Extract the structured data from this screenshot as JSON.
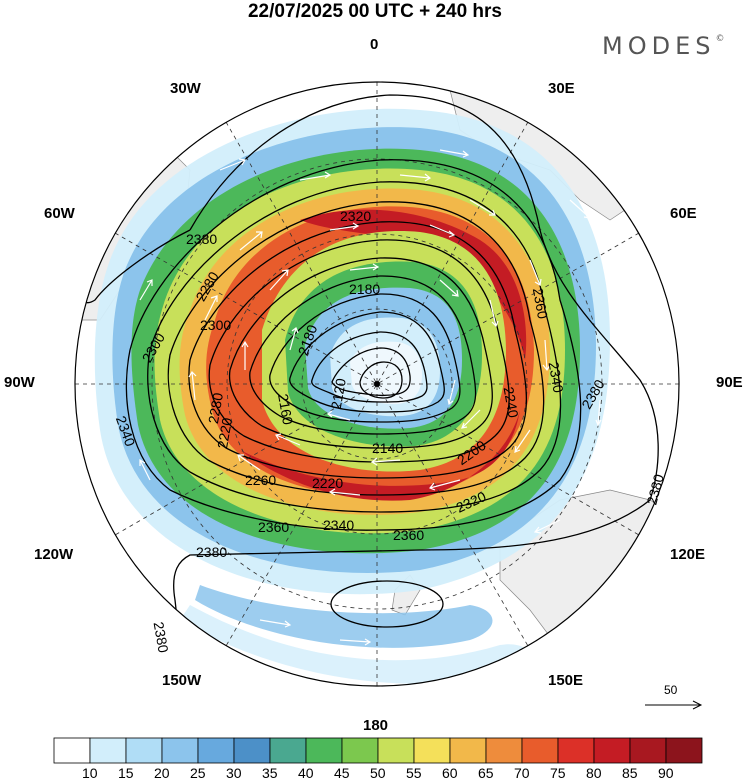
{
  "title": "22/07/2025  00 UTC  + 240 hrs",
  "brand": "MODES",
  "brand_mark": "©",
  "longitudes": {
    "lon_0": "0",
    "lon_30e": "30E",
    "lon_60e": "60E",
    "lon_90e": "90E",
    "lon_120e": "120E",
    "lon_150e": "150E",
    "lon_180": "180",
    "lon_150w": "150W",
    "lon_120w": "120W",
    "lon_90w": "90W",
    "lon_60w": "60W",
    "lon_30w": "30W"
  },
  "map_data": {
    "projection": "south polar stereographic",
    "field_fill": "wind speed",
    "field_contour": "geopotential height",
    "contour_labels": {
      "c2380_w": "2380",
      "c2380_e1": "2380",
      "c2380_e2": "2380",
      "c2380_s": "2380",
      "c2380_sw": "2380",
      "c2360_e": "2360",
      "c2360_s": "2360",
      "c2360_sw": "2360",
      "c2340_e": "2340",
      "c2340_s": "2340",
      "c2340_w": "2340",
      "c2320_n": "2320",
      "c2320_se": "2320",
      "c2300_w": "2300",
      "c2300_nw": "2300",
      "c2280_w": "2280",
      "c2280_nw": "2280",
      "c2260_s": "2260",
      "c2240_e": "2240",
      "c2220_w": "2220",
      "c2220_s": "2220",
      "c2200_se": "2200",
      "c2180_n": "2180",
      "c2180_w": "2180",
      "c2160_w": "2160",
      "c2140_s": "2140",
      "c2120_c": "2120"
    },
    "reference_vector": "50"
  },
  "colorbar": {
    "labels": [
      "10",
      "15",
      "20",
      "25",
      "30",
      "35",
      "40",
      "45",
      "50",
      "55",
      "60",
      "65",
      "70",
      "75",
      "80",
      "85",
      "90"
    ],
    "colors": [
      "#ffffff",
      "#d2eefb",
      "#b0ddf6",
      "#8cc4ec",
      "#67a9de",
      "#4c90c8",
      "#4aa890",
      "#4cb85a",
      "#7cc84e",
      "#c8e05a",
      "#f4e05a",
      "#f2b84a",
      "#ee8c3c",
      "#e85c2c",
      "#dc3028",
      "#c41c24",
      "#a81820",
      "#8c141c"
    ]
  }
}
